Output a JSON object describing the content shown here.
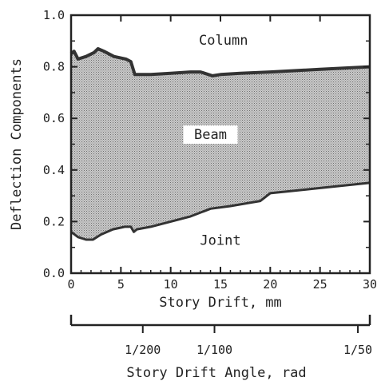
{
  "chart_data": {
    "type": "area",
    "xlabel": "Story Drift, mm",
    "ylabel": "Deflection Components",
    "xlim": [
      0,
      30
    ],
    "ylim": [
      0.0,
      1.0
    ],
    "x_ticks": [
      "0",
      "5",
      "10",
      "15",
      "20",
      "25",
      "30"
    ],
    "y_ticks": [
      "0.0",
      "0.2",
      "0.4",
      "0.6",
      "0.8",
      "1.0"
    ],
    "secondary_axis": {
      "label": "Story Drift Angle, rad",
      "ticks": [
        {
          "label": "1/200",
          "drift_mm": 7.2
        },
        {
          "label": "1/100",
          "drift_mm": 14.4
        },
        {
          "label": "1/50",
          "drift_mm": 28.8
        }
      ]
    },
    "regions": {
      "top": "Column",
      "middle": "Beam",
      "bottom": "Joint"
    },
    "series": [
      {
        "name": "Column",
        "x": [
          0,
          0.3,
          0.7,
          1.5,
          2.3,
          2.7,
          3.3,
          4.3,
          5.5,
          6.0,
          6.4,
          8.0,
          10.0,
          12.0,
          13.0,
          13.8,
          14.2,
          15.0,
          17.0,
          20.0,
          25.0,
          30.0
        ],
        "values": [
          0.85,
          0.86,
          0.83,
          0.84,
          0.855,
          0.87,
          0.86,
          0.84,
          0.83,
          0.82,
          0.77,
          0.77,
          0.775,
          0.78,
          0.78,
          0.77,
          0.765,
          0.77,
          0.775,
          0.78,
          0.79,
          0.8
        ]
      },
      {
        "name": "Joint",
        "x": [
          0,
          0.7,
          1.5,
          2.2,
          3.0,
          4.2,
          5.4,
          6.0,
          6.3,
          6.6,
          8.0,
          10.0,
          12.0,
          14.0,
          16.0,
          19.0,
          20.0,
          25.0,
          30.0
        ],
        "values": [
          0.16,
          0.14,
          0.13,
          0.13,
          0.15,
          0.17,
          0.18,
          0.18,
          0.16,
          0.17,
          0.18,
          0.2,
          0.22,
          0.25,
          0.26,
          0.28,
          0.31,
          0.33,
          0.35
        ]
      }
    ]
  }
}
